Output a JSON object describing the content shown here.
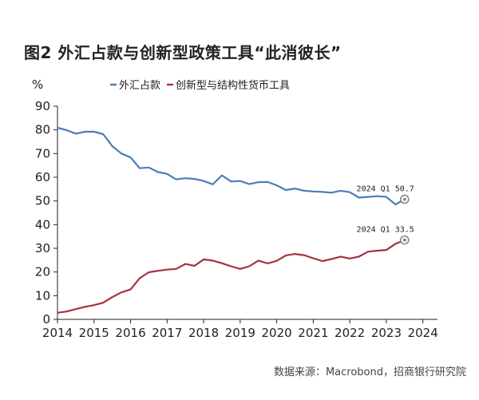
{
  "figure_title": "图2 外汇占款与创新型政策工具“此消彼长”",
  "source": "数据来源：Macrobond，招商银行研究院",
  "colors": {
    "foreign_exchange": "#4a7db5",
    "innovative": "#a5323f",
    "axis": "#222222",
    "marker": "#888888"
  },
  "chart_data": {
    "type": "line",
    "ylabel": "%",
    "ylim": [
      0,
      90
    ],
    "yticks": [
      0,
      10,
      20,
      30,
      40,
      50,
      60,
      70,
      80,
      90
    ],
    "xlim": [
      2014,
      2024.4
    ],
    "xticks": [
      2014,
      2015,
      2016,
      2017,
      2018,
      2019,
      2020,
      2021,
      2022,
      2023,
      2024
    ],
    "grid": false,
    "legend_position": "top",
    "series": [
      {
        "name": "外汇占款",
        "color_key": "foreign_exchange",
        "points": [
          [
            2014.0,
            80.9
          ],
          [
            2014.25,
            79.9
          ],
          [
            2014.5,
            78.4
          ],
          [
            2014.75,
            79.2
          ],
          [
            2015.0,
            79.2
          ],
          [
            2015.25,
            78.2
          ],
          [
            2015.5,
            73.1
          ],
          [
            2015.75,
            70.0
          ],
          [
            2016.0,
            68.4
          ],
          [
            2016.25,
            63.8
          ],
          [
            2016.5,
            64.1
          ],
          [
            2016.75,
            62.2
          ],
          [
            2017.0,
            61.4
          ],
          [
            2017.25,
            59.1
          ],
          [
            2017.5,
            59.6
          ],
          [
            2017.75,
            59.3
          ],
          [
            2018.0,
            58.4
          ],
          [
            2018.25,
            57.0
          ],
          [
            2018.5,
            60.8
          ],
          [
            2018.75,
            58.2
          ],
          [
            2019.0,
            58.4
          ],
          [
            2019.25,
            57.1
          ],
          [
            2019.5,
            57.9
          ],
          [
            2019.75,
            58.0
          ],
          [
            2020.0,
            56.6
          ],
          [
            2020.25,
            54.6
          ],
          [
            2020.5,
            55.2
          ],
          [
            2020.75,
            54.3
          ],
          [
            2021.0,
            54.0
          ],
          [
            2021.25,
            53.8
          ],
          [
            2021.5,
            53.5
          ],
          [
            2021.75,
            54.3
          ],
          [
            2022.0,
            53.7
          ],
          [
            2022.25,
            51.4
          ],
          [
            2022.5,
            51.7
          ],
          [
            2022.75,
            52.0
          ],
          [
            2023.0,
            51.7
          ],
          [
            2023.25,
            48.5
          ],
          [
            2023.5,
            50.7
          ]
        ]
      },
      {
        "name": "创新型与结构性货币工具",
        "color_key": "innovative",
        "points": [
          [
            2014.0,
            2.8
          ],
          [
            2014.25,
            3.3
          ],
          [
            2014.5,
            4.3
          ],
          [
            2014.75,
            5.3
          ],
          [
            2015.0,
            6.0
          ],
          [
            2015.25,
            7.0
          ],
          [
            2015.5,
            9.4
          ],
          [
            2015.75,
            11.4
          ],
          [
            2016.0,
            12.6
          ],
          [
            2016.25,
            17.4
          ],
          [
            2016.5,
            19.9
          ],
          [
            2016.75,
            20.5
          ],
          [
            2017.0,
            21.0
          ],
          [
            2017.25,
            21.3
          ],
          [
            2017.5,
            23.4
          ],
          [
            2017.75,
            22.6
          ],
          [
            2018.0,
            25.3
          ],
          [
            2018.25,
            24.8
          ],
          [
            2018.5,
            23.7
          ],
          [
            2018.75,
            22.4
          ],
          [
            2019.0,
            21.3
          ],
          [
            2019.25,
            22.4
          ],
          [
            2019.5,
            24.8
          ],
          [
            2019.75,
            23.6
          ],
          [
            2020.0,
            24.7
          ],
          [
            2020.25,
            27.0
          ],
          [
            2020.5,
            27.6
          ],
          [
            2020.75,
            27.1
          ],
          [
            2021.0,
            25.8
          ],
          [
            2021.25,
            24.6
          ],
          [
            2021.5,
            25.5
          ],
          [
            2021.75,
            26.5
          ],
          [
            2022.0,
            25.7
          ],
          [
            2022.25,
            26.5
          ],
          [
            2022.5,
            28.6
          ],
          [
            2022.75,
            29.0
          ],
          [
            2023.0,
            29.3
          ],
          [
            2023.25,
            31.9
          ],
          [
            2023.5,
            33.5
          ]
        ]
      }
    ],
    "annotations": [
      {
        "text": "2024 Q1 50.7",
        "series": 0,
        "x": 2023.5,
        "y": 50.7
      },
      {
        "text": "2024 Q1 33.5",
        "series": 1,
        "x": 2023.5,
        "y": 33.5
      }
    ]
  }
}
